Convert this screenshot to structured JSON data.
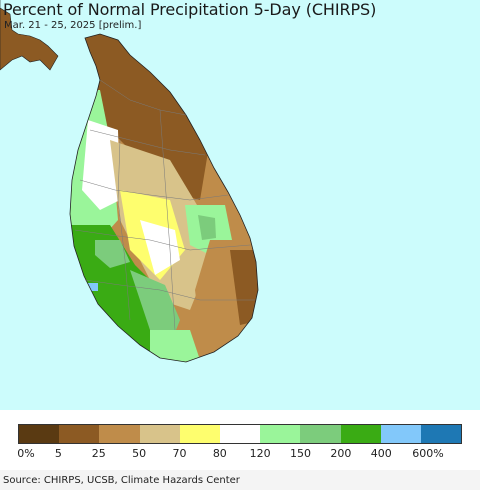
{
  "map": {
    "title": "Percent of Normal Precipitation 5-Day (CHIRPS)",
    "subtitle": "Mar. 21 - 25, 2025 [prelim.]",
    "ocean_color": "#ccfcfc",
    "region_colors": {
      "0-5": "#5a3a12",
      "5-25": "#8c5a23",
      "25-50": "#bf8c4a",
      "50-70": "#d8c38a",
      "70-80": "#fefe6e",
      "80-120": "#ffffff",
      "120-150": "#9af59a",
      "150-200": "#7ccc7c",
      "200-400": "#3aab14",
      "400-600": "#82c8fa",
      "600+": "#1e78b4"
    }
  },
  "legend": {
    "colors": [
      "#5a3a12",
      "#8c5a23",
      "#bf8c4a",
      "#d8c38a",
      "#fefe6e",
      "#ffffff",
      "#9af59a",
      "#7ccc7c",
      "#3aab14",
      "#82c8fa",
      "#1e78b4"
    ],
    "labels": [
      "0%",
      "5",
      "25",
      "50",
      "70",
      "80",
      "120",
      "150",
      "200",
      "400",
      "600%"
    ]
  },
  "footer": {
    "source": "Source: CHIRPS, UCSB, Climate Hazards Center"
  }
}
